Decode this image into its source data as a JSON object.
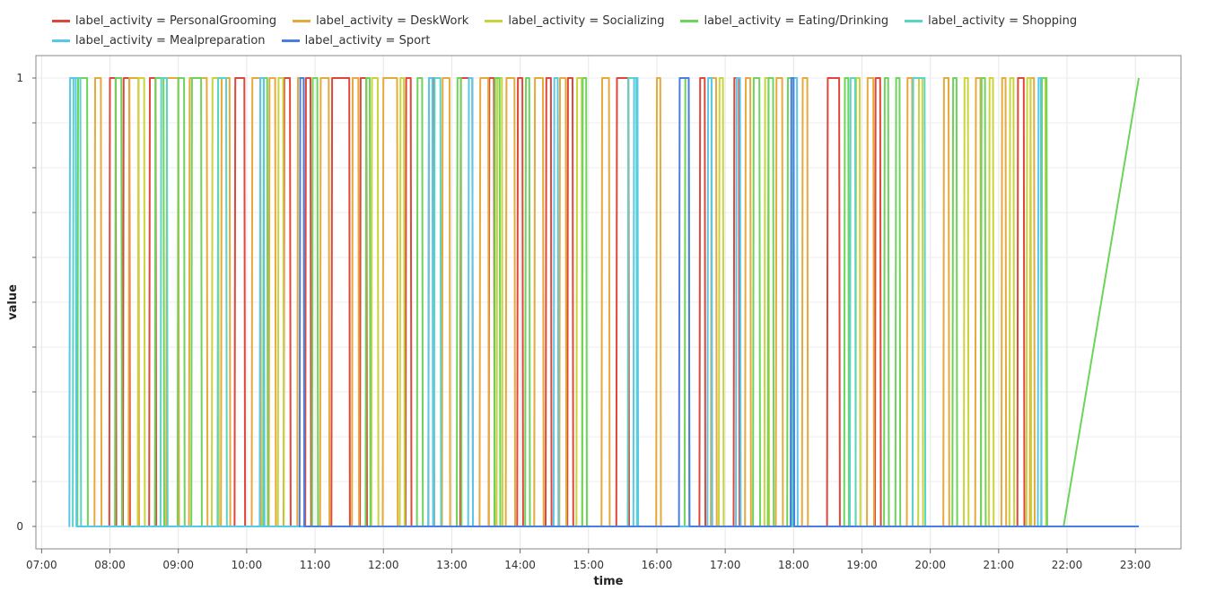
{
  "chart_data": {
    "type": "line",
    "xlabel": "time",
    "ylabel": "value",
    "x_axis": {
      "type": "time",
      "range": [
        "06:55",
        "23:40"
      ],
      "ticks": [
        "07:00",
        "08:00",
        "09:00",
        "10:00",
        "11:00",
        "12:00",
        "13:00",
        "14:00",
        "15:00",
        "16:00",
        "17:00",
        "18:00",
        "19:00",
        "20:00",
        "21:00",
        "22:00",
        "23:00"
      ]
    },
    "y_axis": {
      "range": [
        -0.05,
        1.05
      ],
      "ticks": [
        0,
        1
      ]
    },
    "grid": true,
    "legend_position": "top",
    "series": [
      {
        "name": "label_activity = PersonalGrooming",
        "color": "#e0463a",
        "intervals": [
          [
            "08:00",
            "08:05"
          ],
          [
            "08:12",
            "08:17"
          ],
          [
            "08:35",
            "08:40"
          ],
          [
            "09:50",
            "09:58"
          ],
          [
            "10:33",
            "10:38"
          ],
          [
            "10:52",
            "10:56"
          ],
          [
            "11:15",
            "11:30"
          ],
          [
            "11:40",
            "11:45"
          ],
          [
            "12:20",
            "12:24"
          ],
          [
            "12:40",
            "12:44"
          ],
          [
            "13:08",
            "13:18"
          ],
          [
            "13:33",
            "13:37"
          ],
          [
            "13:58",
            "14:02"
          ],
          [
            "14:23",
            "14:27"
          ],
          [
            "14:42",
            "14:46"
          ],
          [
            "15:25",
            "15:35"
          ],
          [
            "16:38",
            "16:42"
          ],
          [
            "17:08",
            "17:12"
          ],
          [
            "18:30",
            "18:40"
          ],
          [
            "19:12",
            "19:16"
          ],
          [
            "21:17",
            "21:22"
          ]
        ],
        "y_end": 0,
        "x_end": "23:03"
      },
      {
        "name": "label_activity = DeskWork",
        "color": "#e6a93c",
        "intervals": [
          [
            "07:47",
            "07:52"
          ],
          [
            "08:17",
            "08:25"
          ],
          [
            "08:50",
            "09:00"
          ],
          [
            "09:10",
            "09:25"
          ],
          [
            "09:38",
            "09:45"
          ],
          [
            "10:05",
            "10:12"
          ],
          [
            "10:20",
            "10:25"
          ],
          [
            "10:45",
            "10:50"
          ],
          [
            "11:05",
            "11:12"
          ],
          [
            "11:33",
            "11:38"
          ],
          [
            "12:00",
            "12:12"
          ],
          [
            "12:52",
            "12:58"
          ],
          [
            "13:25",
            "13:32"
          ],
          [
            "13:48",
            "13:55"
          ],
          [
            "14:13",
            "14:20"
          ],
          [
            "14:35",
            "14:40"
          ],
          [
            "15:12",
            "15:18"
          ],
          [
            "16:00",
            "16:03"
          ],
          [
            "16:48",
            "16:52"
          ],
          [
            "17:18",
            "17:22"
          ],
          [
            "17:45",
            "17:50"
          ],
          [
            "18:08",
            "18:12"
          ],
          [
            "19:05",
            "19:10"
          ],
          [
            "19:40",
            "19:44"
          ],
          [
            "20:12",
            "20:16"
          ],
          [
            "20:40",
            "20:44"
          ],
          [
            "21:03",
            "21:06"
          ],
          [
            "21:28",
            "21:31"
          ]
        ],
        "y_end": 0,
        "x_end": "23:03"
      },
      {
        "name": "label_activity = Socializing",
        "color": "#c8d43a",
        "intervals": [
          [
            "08:25",
            "08:30"
          ],
          [
            "09:30",
            "09:35"
          ],
          [
            "10:28",
            "10:32"
          ],
          [
            "11:50",
            "11:55"
          ],
          [
            "12:15",
            "12:18"
          ],
          [
            "13:40",
            "13:44"
          ],
          [
            "14:50",
            "14:54"
          ],
          [
            "16:55",
            "16:58"
          ],
          [
            "17:35",
            "17:38"
          ],
          [
            "18:55",
            "18:58"
          ],
          [
            "19:50",
            "19:53"
          ],
          [
            "20:30",
            "20:33"
          ],
          [
            "20:52",
            "20:55"
          ],
          [
            "21:10",
            "21:13"
          ],
          [
            "21:25",
            "21:28"
          ],
          [
            "21:38",
            "21:41"
          ]
        ],
        "y_end": 0,
        "x_end": "23:03"
      },
      {
        "name": "label_activity = Eating/Drinking",
        "color": "#6cd45a",
        "intervals": [
          [
            "07:32",
            "07:40"
          ],
          [
            "08:05",
            "08:10"
          ],
          [
            "08:40",
            "08:47"
          ],
          [
            "09:00",
            "09:05"
          ],
          [
            "09:12",
            "09:20"
          ],
          [
            "10:15",
            "10:18"
          ],
          [
            "10:58",
            "11:02"
          ],
          [
            "11:45",
            "11:48"
          ],
          [
            "12:30",
            "12:34"
          ],
          [
            "13:05",
            "13:08"
          ],
          [
            "13:38",
            "13:42"
          ],
          [
            "14:05",
            "14:08"
          ],
          [
            "14:55",
            "14:58"
          ],
          [
            "16:25",
            "16:28"
          ],
          [
            "17:25",
            "17:30"
          ],
          [
            "17:38",
            "17:42"
          ],
          [
            "17:55",
            "17:58"
          ],
          [
            "18:45",
            "18:48"
          ],
          [
            "19:20",
            "19:23"
          ],
          [
            "19:30",
            "19:33"
          ],
          [
            "20:20",
            "20:23"
          ],
          [
            "20:45",
            "20:48"
          ],
          [
            "21:38",
            "21:42"
          ]
        ],
        "y_end": 1,
        "x_end": "23:03",
        "final_ramp": [
          [
            "21:57",
            0
          ],
          [
            "23:03",
            1
          ]
        ]
      },
      {
        "name": "label_activity = Shopping",
        "color": "#5ad4c4",
        "intervals": [
          [
            "07:28",
            "07:34"
          ],
          [
            "08:45",
            "08:50"
          ],
          [
            "09:35",
            "09:42"
          ],
          [
            "12:45",
            "12:50"
          ],
          [
            "15:35",
            "15:42"
          ],
          [
            "18:50",
            "18:54"
          ],
          [
            "19:45",
            "19:55"
          ]
        ],
        "y_end": 0,
        "x_end": "23:03"
      },
      {
        "name": "label_activity = Mealpreparation",
        "color": "#58c8e8",
        "intervals": [
          [
            "07:25",
            "07:30"
          ],
          [
            "10:12",
            "10:15"
          ],
          [
            "12:40",
            "12:43"
          ],
          [
            "13:15",
            "13:18"
          ],
          [
            "14:30",
            "14:33"
          ],
          [
            "15:40",
            "15:43"
          ],
          [
            "16:45",
            "16:48"
          ],
          [
            "17:10",
            "17:13"
          ],
          [
            "18:00",
            "18:03"
          ],
          [
            "21:35",
            "21:37"
          ]
        ],
        "y_end": 0,
        "x_end": "23:03"
      },
      {
        "name": "label_activity = Sport",
        "color": "#4a7ee0",
        "intervals": [
          [
            "10:47",
            "10:50"
          ],
          [
            "16:20",
            "16:28"
          ],
          [
            "17:58",
            "18:00"
          ]
        ],
        "y_end": 0,
        "x_end": "23:03"
      }
    ]
  }
}
